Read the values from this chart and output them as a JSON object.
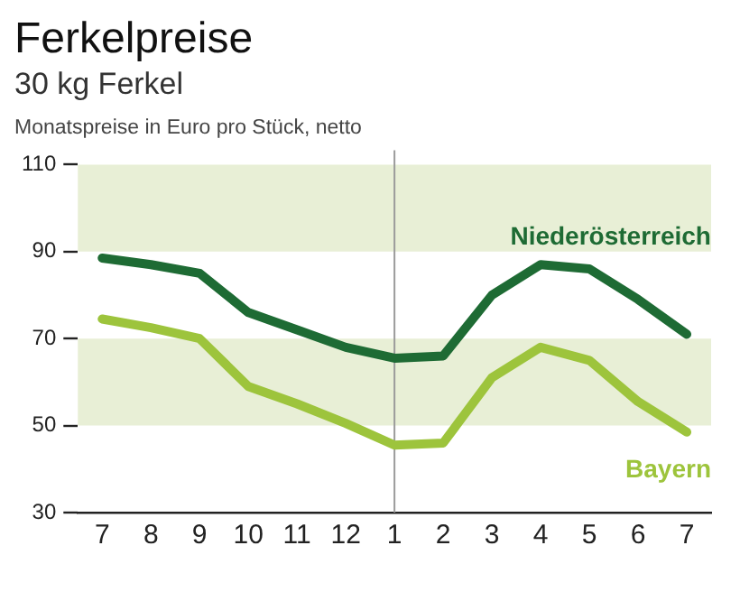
{
  "chart_data": {
    "type": "line",
    "title": "Ferkelpreise",
    "subtitle": "30 kg Ferkel",
    "ylabel": "Monatspreise in Euro pro Stück, netto",
    "categories": [
      "7",
      "8",
      "9",
      "10",
      "11",
      "12",
      "1",
      "2",
      "3",
      "4",
      "5",
      "6",
      "7"
    ],
    "series": [
      {
        "name": "Niederösterreich",
        "color": "#1e6b34",
        "values": [
          88.5,
          87,
          85,
          76,
          72,
          68,
          65.5,
          66,
          80,
          87,
          86,
          79,
          71
        ]
      },
      {
        "name": "Bayern",
        "color": "#9dc43c",
        "values": [
          74.5,
          72.5,
          70,
          59,
          55,
          50.5,
          45.5,
          46,
          61,
          68,
          65,
          55.5,
          48.5
        ]
      }
    ],
    "ylim": [
      30,
      110
    ],
    "yticks": [
      30,
      50,
      70,
      90,
      110
    ],
    "grid": false,
    "legend": false,
    "marker": "none",
    "line_style": "solid",
    "bands": [
      {
        "axis": "y",
        "from": 90,
        "to": 110,
        "color": "#e8efd6"
      },
      {
        "axis": "y",
        "from": 50,
        "to": 70,
        "color": "#e8efd6"
      }
    ],
    "ref_lines": [
      {
        "axis": "x",
        "value": "1",
        "color": "#9a9a9a"
      }
    ]
  }
}
